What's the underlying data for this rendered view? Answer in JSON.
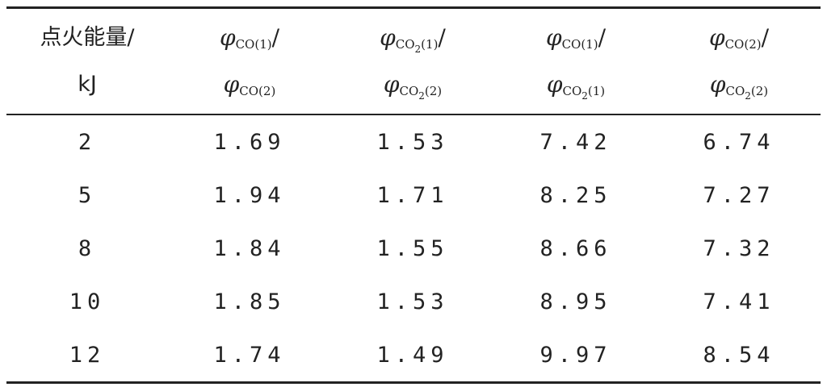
{
  "header": {
    "col0_line1": "点火能量/",
    "col0_line2": "kJ",
    "phi": "φ",
    "slash": "/",
    "col1_top_sub": "CO(1)",
    "col1_bottom_sub": "CO(2)",
    "col2_top_sub": "CO",
    "col2_top_sub2": "2",
    "col2_top_sub3": "(1)",
    "col2_bottom_sub": "CO",
    "col2_bottom_sub2": "2",
    "col2_bottom_sub3": "(2)",
    "col3_top_sub": "CO(1)",
    "col3_bottom_sub": "CO",
    "col3_bottom_sub2": "2",
    "col3_bottom_sub3": "(1)",
    "col4_top_sub": "CO(2)",
    "col4_bottom_sub": "CO",
    "col4_bottom_sub2": "2",
    "col4_bottom_sub3": "(2)"
  },
  "rows": [
    [
      "2",
      "1.69",
      "1.53",
      "7.42",
      "6.74"
    ],
    [
      "5",
      "1.94",
      "1.71",
      "8.25",
      "7.27"
    ],
    [
      "8",
      "1.84",
      "1.55",
      "8.66",
      "7.32"
    ],
    [
      "10",
      "1.85",
      "1.53",
      "8.95",
      "7.41"
    ],
    [
      "12",
      "1.74",
      "1.49",
      "9.97",
      "8.54"
    ]
  ]
}
